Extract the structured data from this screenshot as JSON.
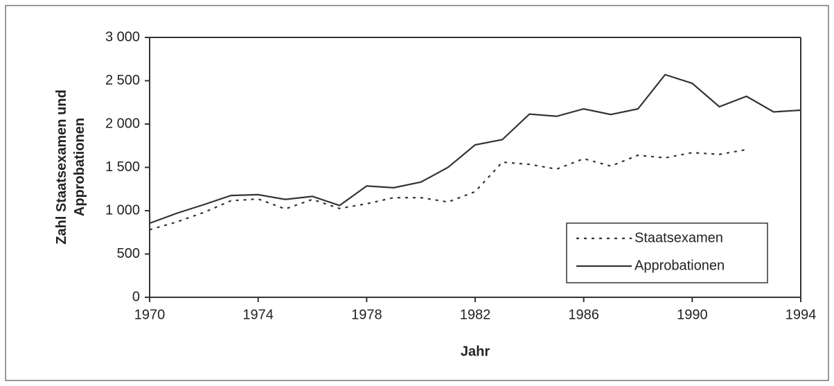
{
  "chart_data": {
    "type": "line",
    "x_label": "Jahr",
    "y_label": "Zahl Staatsexamen und Approbationen",
    "x": [
      1970,
      1971,
      1972,
      1973,
      1974,
      1975,
      1976,
      1977,
      1978,
      1979,
      1980,
      1981,
      1982,
      1983,
      1984,
      1985,
      1986,
      1987,
      1988,
      1989,
      1990,
      1991,
      1992,
      1993,
      1994
    ],
    "series": [
      {
        "name": "Staatsexamen",
        "color": "#333333",
        "line_style": "dotted",
        "values": [
          780,
          870,
          980,
          1115,
          1135,
          1020,
          1130,
          1025,
          1080,
          1150,
          1150,
          1100,
          1220,
          1560,
          1535,
          1480,
          1600,
          1515,
          1640,
          1610,
          1670,
          1650,
          1705,
          null,
          null
        ]
      },
      {
        "name": "Approbationen",
        "color": "#333333",
        "line_style": "solid",
        "values": [
          855,
          970,
          1070,
          1175,
          1185,
          1130,
          1165,
          1060,
          1285,
          1265,
          1330,
          1500,
          1760,
          1820,
          2115,
          2090,
          2175,
          2110,
          2175,
          2570,
          2470,
          2200,
          2320,
          2140,
          2160
        ]
      }
    ],
    "xlim": [
      1970,
      1994
    ],
    "xticks": [
      1970,
      1974,
      1978,
      1982,
      1986,
      1990,
      1994
    ],
    "ylim": [
      0,
      3000
    ],
    "yticks": [
      0,
      500,
      {
        "value": 1000,
        "label": "1 000"
      },
      {
        "value": 1500,
        "label": "1 500"
      },
      {
        "value": 2000,
        "label": "2 000"
      },
      {
        "value": 2500,
        "label": "2 500"
      },
      {
        "value": 3000,
        "label": "3 000"
      }
    ],
    "grid": false,
    "legend": "lower right"
  }
}
